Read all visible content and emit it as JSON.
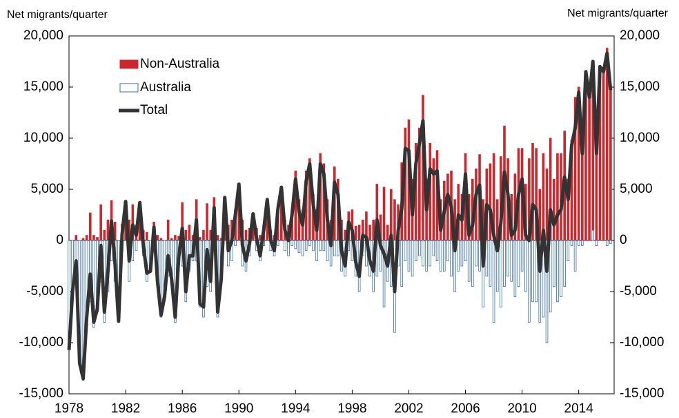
{
  "chart_data": {
    "type": "bar-line",
    "ylabel": "Net migrants/quarter",
    "x": [
      1978,
      1978.25,
      1978.5,
      1978.75,
      1979,
      1979.25,
      1979.5,
      1979.75,
      1980,
      1980.25,
      1980.5,
      1980.75,
      1981,
      1981.25,
      1981.5,
      1981.75,
      1982,
      1982.25,
      1982.5,
      1982.75,
      1983,
      1983.25,
      1983.5,
      1983.75,
      1984,
      1984.25,
      1984.5,
      1984.75,
      1985,
      1985.25,
      1985.5,
      1985.75,
      1986,
      1986.25,
      1986.5,
      1986.75,
      1987,
      1987.25,
      1987.5,
      1987.75,
      1988,
      1988.25,
      1988.5,
      1988.75,
      1989,
      1989.25,
      1989.5,
      1989.75,
      1990,
      1990.25,
      1990.5,
      1990.75,
      1991,
      1991.25,
      1991.5,
      1991.75,
      1992,
      1992.25,
      1992.5,
      1992.75,
      1993,
      1993.25,
      1993.5,
      1993.75,
      1994,
      1994.25,
      1994.5,
      1994.75,
      1995,
      1995.25,
      1995.5,
      1995.75,
      1996,
      1996.25,
      1996.5,
      1996.75,
      1997,
      1997.25,
      1997.5,
      1997.75,
      1998,
      1998.25,
      1998.5,
      1998.75,
      1999,
      1999.25,
      1999.5,
      1999.75,
      2000,
      2000.25,
      2000.5,
      2000.75,
      2001,
      2001.25,
      2001.5,
      2001.75,
      2002,
      2002.25,
      2002.5,
      2002.75,
      2003,
      2003.25,
      2003.5,
      2003.75,
      2004,
      2004.25,
      2004.5,
      2004.75,
      2005,
      2005.25,
      2005.5,
      2005.75,
      2006,
      2006.25,
      2006.5,
      2006.75,
      2007,
      2007.25,
      2007.5,
      2007.75,
      2008,
      2008.25,
      2008.5,
      2008.75,
      2009,
      2009.25,
      2009.5,
      2009.75,
      2010,
      2010.25,
      2010.5,
      2010.75,
      2011,
      2011.25,
      2011.5,
      2011.75,
      2012,
      2012.25,
      2012.5,
      2012.75,
      2013,
      2013.25,
      2013.5,
      2013.75,
      2014,
      2014.25,
      2014.5,
      2014.75,
      2015,
      2015.25,
      2015.5,
      2015.75,
      2016,
      2016.25
    ],
    "series": [
      {
        "name": "Non-Australia",
        "color": "#c8282e",
        "values": [
          0,
          0,
          500,
          0,
          200,
          500,
          2700,
          500,
          300,
          3500,
          1000,
          2000,
          3900,
          1800,
          0,
          1600,
          3800,
          2000,
          3500,
          1500,
          3700,
          1000,
          800,
          0,
          1800,
          500,
          200,
          0,
          2000,
          200,
          500,
          400,
          3700,
          1000,
          1500,
          500,
          4000,
          300,
          1000,
          3600,
          1000,
          4200,
          500,
          200,
          4200,
          1500,
          2000,
          3000,
          5500,
          2000,
          1000,
          1200,
          2600,
          1200,
          500,
          1500,
          4000,
          1000,
          500,
          3500,
          5200,
          2000,
          1500,
          3000,
          6800,
          4000,
          3000,
          6800,
          8000,
          4500,
          3000,
          8500,
          7500,
          4000,
          2000,
          7200,
          6000,
          2000,
          1000,
          2800,
          3000,
          1400,
          1500,
          2000,
          2800,
          1500,
          2000,
          5500,
          2500,
          5200,
          1500,
          5000,
          4000,
          3500,
          7600,
          11000,
          11800,
          6000,
          9500,
          11000,
          14200,
          6000,
          9500,
          8000,
          8800,
          4000,
          5800,
          6500,
          6800,
          4000,
          5500,
          4500,
          8500,
          4500,
          6000,
          7000,
          8400,
          4000,
          7000,
          7500,
          8500,
          4000,
          8200,
          11200,
          8000,
          4500,
          6500,
          9000,
          9000,
          5500,
          8000,
          9500,
          9000,
          5000,
          8500,
          7000,
          10000,
          6000,
          8500,
          8500,
          10700,
          6000,
          9800,
          14000,
          15000,
          9000,
          16500,
          14000,
          16500,
          9000,
          17000,
          16500,
          18800,
          15000
        ]
      },
      {
        "name": "Australia",
        "color": "#3a6ea5",
        "values": [
          -10700,
          -5000,
          -2500,
          -12000,
          -13700,
          -8000,
          -6000,
          -8500,
          -7000,
          -4000,
          -8000,
          -5000,
          -2000,
          -4000,
          -7900,
          -1000,
          0,
          -4000,
          -2000,
          -1000,
          0,
          -1500,
          -4000,
          -3000,
          -500,
          -4500,
          -7500,
          -5500,
          -3500,
          -4000,
          -8000,
          -2000,
          -2500,
          -6000,
          -3000,
          -2000,
          -2000,
          -6500,
          -7500,
          -4500,
          -5000,
          -1000,
          -7500,
          -4000,
          0,
          -2500,
          -2000,
          -500,
          0,
          -2500,
          -3000,
          -1500,
          0,
          -1000,
          -2000,
          -500,
          0,
          -1000,
          -1500,
          -500,
          0,
          -1000,
          -1500,
          -500,
          -800,
          -1200,
          -1500,
          -1000,
          -500,
          -1000,
          -2000,
          -1000,
          -1000,
          -2000,
          -2500,
          -1500,
          -1500,
          -3000,
          -3500,
          -1000,
          -2000,
          -3500,
          -5000,
          -1500,
          -2500,
          -3500,
          -5000,
          -3500,
          -3000,
          -6500,
          -4000,
          -4500,
          -9000,
          -2500,
          -4500,
          -2000,
          -3000,
          -3500,
          -2000,
          -1500,
          -2500,
          -3000,
          -2500,
          -1500,
          -2000,
          -3000,
          -3000,
          -2000,
          -3500,
          -5000,
          -3000,
          -2500,
          -2000,
          -4000,
          -4500,
          -2500,
          -3000,
          -6500,
          -3500,
          -4500,
          -8000,
          -5000,
          -6500,
          -4500,
          -3500,
          -4000,
          -5500,
          -4500,
          -3000,
          -5000,
          -8000,
          -6000,
          -6000,
          -8000,
          -7500,
          -10000,
          -7000,
          -4500,
          -6000,
          -5500,
          -4500,
          -2000,
          -500,
          -3000,
          -500,
          -500,
          0,
          0,
          1000,
          -500,
          0,
          0,
          -500,
          -300
        ]
      },
      {
        "name": "Total",
        "color": "#333333",
        "values": [
          -10700,
          -5000,
          -2000,
          -12000,
          -13500,
          -7500,
          -3300,
          -8000,
          -6700,
          -500,
          -7000,
          -3000,
          1900,
          -2200,
          -7900,
          600,
          3800,
          -2000,
          1500,
          500,
          3700,
          -500,
          -3200,
          -3000,
          1300,
          -4000,
          -7300,
          -5500,
          -1500,
          -3800,
          -7500,
          -1600,
          1200,
          -5000,
          -1500,
          -1500,
          2000,
          -6200,
          -6500,
          -900,
          -4000,
          3200,
          -7000,
          -3800,
          4200,
          -1000,
          0,
          2500,
          5500,
          -500,
          -2000,
          -300,
          2600,
          200,
          -1500,
          1000,
          4000,
          0,
          -1000,
          3000,
          5200,
          1000,
          0,
          2500,
          6000,
          2800,
          1500,
          5800,
          7500,
          3500,
          1000,
          7500,
          6500,
          2000,
          -500,
          5700,
          4500,
          -1000,
          -2500,
          1800,
          1000,
          -2100,
          -3500,
          500,
          300,
          -2000,
          -3000,
          2000,
          -500,
          -1300,
          -2500,
          500,
          -5000,
          1000,
          3100,
          9000,
          8800,
          2500,
          7500,
          9500,
          11700,
          3000,
          7000,
          6500,
          6800,
          1000,
          2800,
          4500,
          3300,
          -1000,
          2500,
          2000,
          6500,
          500,
          1500,
          4500,
          5400,
          -2500,
          3500,
          3000,
          500,
          -1000,
          1700,
          6700,
          4500,
          500,
          1000,
          4500,
          6000,
          500,
          0,
          3500,
          3000,
          -3000,
          1000,
          -3000,
          3000,
          1500,
          2500,
          3000,
          6200,
          4000,
          9300,
          11000,
          14500,
          8500,
          16500,
          14000,
          17500,
          8500,
          17000,
          16500,
          18300,
          14700
        ]
      }
    ],
    "xlim": [
      1978,
      2016.5
    ],
    "xticks": [
      1978,
      1982,
      1986,
      1990,
      1994,
      1998,
      2002,
      2006,
      2010,
      2014
    ],
    "ylim": [
      -15000,
      20000
    ],
    "yticks": [
      {
        "value": -15000,
        "label": "-15,000"
      },
      {
        "value": -10000,
        "label": "-10,000"
      },
      {
        "value": -5000,
        "label": "-5,000"
      },
      0,
      {
        "value": 5000,
        "label": "5,000"
      },
      {
        "value": 10000,
        "label": "10,000"
      },
      {
        "value": 15000,
        "label": "15,000"
      },
      {
        "value": 20000,
        "label": "20,000"
      }
    ]
  }
}
